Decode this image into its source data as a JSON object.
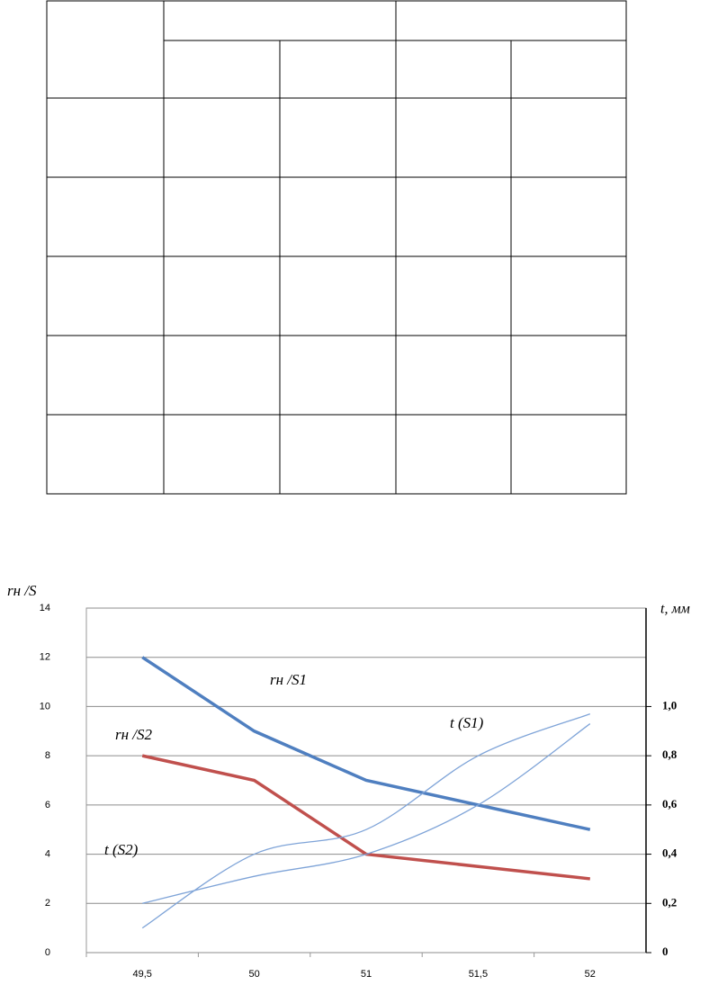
{
  "chart_data": {
    "type": "line",
    "y_label": "rн /S",
    "y2_label": "t, мм",
    "categories": [
      "49,5",
      "50",
      "51",
      "51,5",
      "52"
    ],
    "ylim": [
      0,
      14
    ],
    "yticks": [
      0,
      2,
      4,
      6,
      8,
      10,
      12,
      14
    ],
    "y2lim": [
      0,
      1.4
    ],
    "y2ticks": [
      0,
      {
        "value": 0.2,
        "label": "0,2"
      },
      {
        "value": 0.4,
        "label": "0,4"
      },
      {
        "value": 0.6,
        "label": "0,6"
      },
      {
        "value": 0.8,
        "label": "0,8"
      },
      {
        "value": 1.0,
        "label": "1,0"
      }
    ],
    "grid": true,
    "series": [
      {
        "name": "rн /S1",
        "color": "#4f7fc0",
        "values": [
          12,
          9,
          7,
          6,
          5
        ]
      },
      {
        "name": "rн /S2",
        "color": "#c0504d",
        "values": [
          8,
          7,
          4,
          3.5,
          3
        ]
      },
      {
        "name": "t (S1)",
        "color": "#7fa4d8",
        "axis": "y2",
        "values": [
          0.1,
          0.4,
          0.5,
          0.8,
          0.97
        ]
      },
      {
        "name": "t (S2)",
        "color": "#7fa4d8",
        "axis": "y2",
        "values": [
          0.2,
          0.31,
          0.4,
          0.6,
          0.93
        ]
      }
    ]
  }
}
